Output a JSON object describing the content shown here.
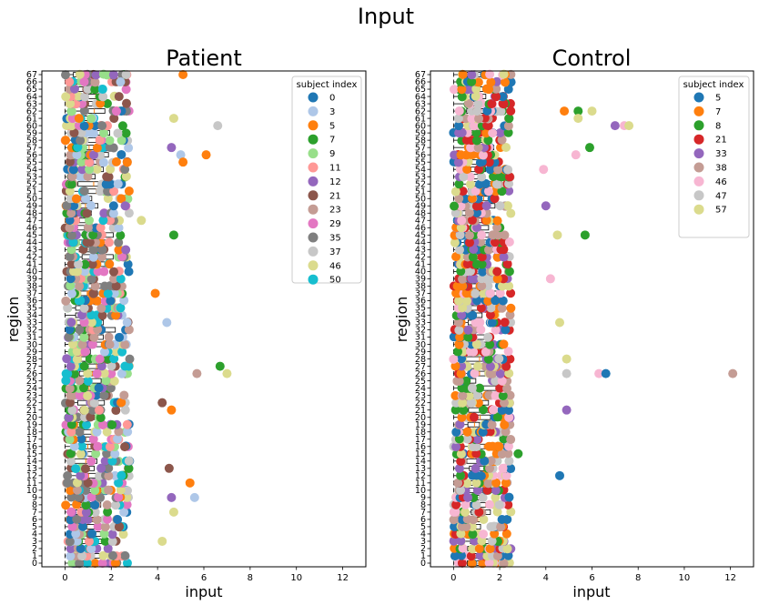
{
  "figure": {
    "suptitle": "Input"
  },
  "palette": {
    "0": "#1f77b4",
    "3": "#aec7e8",
    "5": "#ff7f0e",
    "7": "#2ca02c",
    "8": "#2ca02c",
    "9": "#98df8a",
    "11": "#ff9896",
    "12": "#9467bd",
    "21": "#8c564b",
    "23": "#c49c94",
    "29": "#e377c2",
    "33": "#9467bd",
    "35": "#7f7f7f",
    "37": "#c7c7c7",
    "38": "#c49c94",
    "46": "#dbdb8d",
    "47": "#c7c7c7",
    "50": "#17becf",
    "57": "#dbdb8d"
  },
  "chart_data": [
    {
      "type": "scatter",
      "title": "Patient",
      "xlabel": "input",
      "ylabel": "region",
      "xlim": [
        -1,
        13
      ],
      "ylim": [
        -0.5,
        67.5
      ],
      "xticks": [
        0,
        2,
        4,
        6,
        8,
        10,
        12
      ],
      "yticks_range": [
        0,
        67
      ],
      "grid": false,
      "legend": {
        "title": "subject index",
        "placement": "top-right",
        "entries": [
          {
            "label": "0",
            "color": "#1f77b4"
          },
          {
            "label": "3",
            "color": "#aec7e8"
          },
          {
            "label": "5",
            "color": "#ff7f0e"
          },
          {
            "label": "7",
            "color": "#2ca02c"
          },
          {
            "label": "9",
            "color": "#98df8a"
          },
          {
            "label": "11",
            "color": "#ff9896"
          },
          {
            "label": "12",
            "color": "#9467bd"
          },
          {
            "label": "21",
            "color": "#8c564b"
          },
          {
            "label": "23",
            "color": "#c49c94"
          },
          {
            "label": "29",
            "color": "#e377c2"
          },
          {
            "label": "35",
            "color": "#7f7f7f"
          },
          {
            "label": "37",
            "color": "#c7c7c7"
          },
          {
            "label": "46",
            "color": "#dbdb8d"
          },
          {
            "label": "50",
            "color": "#17becf"
          }
        ]
      },
      "highlights": [
        {
          "subject": "5",
          "region": 67,
          "x": 5.1
        },
        {
          "subject": "3",
          "region": 66,
          "x": 2.4
        },
        {
          "subject": "46",
          "region": 61,
          "x": 4.7
        },
        {
          "subject": "37",
          "region": 60,
          "x": 6.6
        },
        {
          "subject": "12",
          "region": 57,
          "x": 4.6
        },
        {
          "subject": "3",
          "region": 56,
          "x": 5.0
        },
        {
          "subject": "5",
          "region": 56,
          "x": 6.1
        },
        {
          "subject": "5",
          "region": 55,
          "x": 5.1
        },
        {
          "subject": "12",
          "region": 49,
          "x": 2.6
        },
        {
          "subject": "46",
          "region": 47,
          "x": 3.3
        },
        {
          "subject": "7",
          "region": 45,
          "x": 4.7
        },
        {
          "subject": "5",
          "region": 37,
          "x": 3.9
        },
        {
          "subject": "3",
          "region": 33,
          "x": 4.4
        },
        {
          "subject": "7",
          "region": 27,
          "x": 6.7
        },
        {
          "subject": "46",
          "region": 26,
          "x": 7.0
        },
        {
          "subject": "23",
          "region": 26,
          "x": 5.7
        },
        {
          "subject": "21",
          "region": 22,
          "x": 4.2
        },
        {
          "subject": "5",
          "region": 21,
          "x": 4.6
        },
        {
          "subject": "21",
          "region": 13,
          "x": 4.5
        },
        {
          "subject": "5",
          "region": 11,
          "x": 5.4
        },
        {
          "subject": "3",
          "region": 9,
          "x": 5.6
        },
        {
          "subject": "12",
          "region": 9,
          "x": 4.6
        },
        {
          "subject": "46",
          "region": 7,
          "x": 4.7
        },
        {
          "subject": "46",
          "region": 3,
          "x": 4.2
        }
      ]
    },
    {
      "type": "scatter",
      "title": "Control",
      "xlabel": "input",
      "ylabel": "region",
      "xlim": [
        -1,
        13
      ],
      "ylim": [
        -0.5,
        67.5
      ],
      "xticks": [
        0,
        2,
        4,
        6,
        8,
        10,
        12
      ],
      "yticks_range": [
        0,
        67
      ],
      "grid": false,
      "legend": {
        "title": "subject index",
        "placement": "top-right",
        "entries": [
          {
            "label": "5",
            "color": "#1f77b4"
          },
          {
            "label": "7",
            "color": "#ff7f0e"
          },
          {
            "label": "8",
            "color": "#2ca02c"
          },
          {
            "label": "21",
            "color": "#d62728"
          },
          {
            "label": "33",
            "color": "#9467bd"
          },
          {
            "label": "38",
            "color": "#c49c94"
          },
          {
            "label": "46",
            "color": "#f7b6d2"
          },
          {
            "label": "47",
            "color": "#c7c7c7"
          },
          {
            "label": "57",
            "color": "#dbdb8d"
          }
        ]
      },
      "highlights": [
        {
          "subject": "7",
          "region": 62,
          "x": 4.8
        },
        {
          "subject": "8",
          "region": 62,
          "x": 5.4
        },
        {
          "subject": "57",
          "region": 62,
          "x": 6.0
        },
        {
          "subject": "57",
          "region": 61,
          "x": 5.4
        },
        {
          "subject": "33",
          "region": 60,
          "x": 7.0
        },
        {
          "subject": "46",
          "region": 60,
          "x": 7.4
        },
        {
          "subject": "57",
          "region": 60,
          "x": 7.6
        },
        {
          "subject": "8",
          "region": 57,
          "x": 5.9
        },
        {
          "subject": "46",
          "region": 56,
          "x": 5.3
        },
        {
          "subject": "46",
          "region": 54,
          "x": 3.9
        },
        {
          "subject": "33",
          "region": 49,
          "x": 4.0
        },
        {
          "subject": "8",
          "region": 45,
          "x": 5.7
        },
        {
          "subject": "57",
          "region": 45,
          "x": 4.5
        },
        {
          "subject": "46",
          "region": 39,
          "x": 4.2
        },
        {
          "subject": "57",
          "region": 33,
          "x": 4.6
        },
        {
          "subject": "57",
          "region": 28,
          "x": 4.9
        },
        {
          "subject": "38",
          "region": 26,
          "x": 12.1
        },
        {
          "subject": "46",
          "region": 26,
          "x": 6.3
        },
        {
          "subject": "5",
          "region": 26,
          "x": 6.6
        },
        {
          "subject": "47",
          "region": 26,
          "x": 4.9
        },
        {
          "subject": "33",
          "region": 21,
          "x": 4.9
        },
        {
          "subject": "5",
          "region": 12,
          "x": 4.6
        },
        {
          "subject": "8",
          "region": 15,
          "x": 2.8
        }
      ]
    }
  ]
}
